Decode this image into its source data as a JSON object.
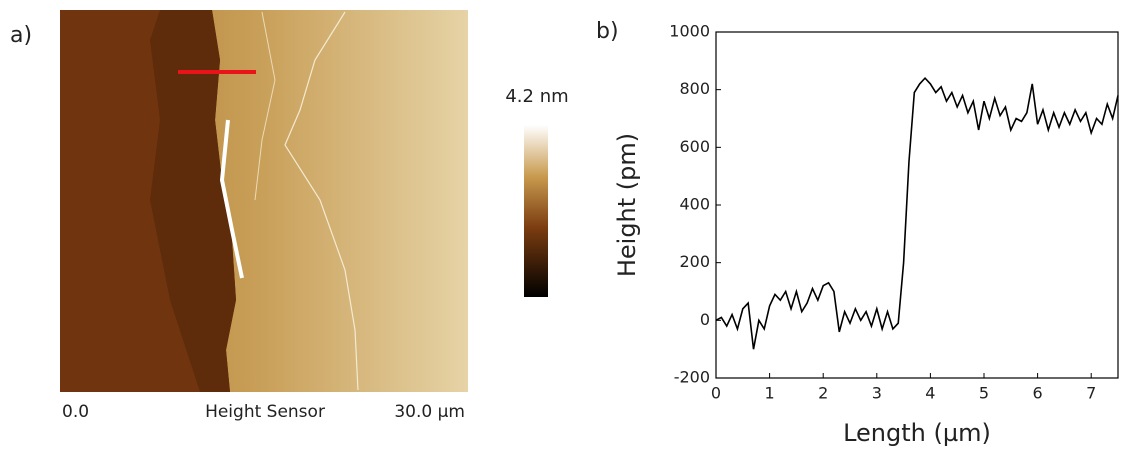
{
  "image_panel": {
    "label": "a)",
    "scale_max": "4.2 nm",
    "x_start": "0.0",
    "caption": "Height Sensor",
    "x_end": "30.0 µm"
  },
  "chart_data": {
    "type": "line",
    "label": "b)",
    "x_label": "Length (µm)",
    "y_label": "Height (pm)",
    "x": [
      0,
      0.1,
      0.2,
      0.3,
      0.4,
      0.5,
      0.6,
      0.7,
      0.8,
      0.9,
      1.0,
      1.1,
      1.2,
      1.3,
      1.4,
      1.5,
      1.6,
      1.7,
      1.8,
      1.9,
      2.0,
      2.1,
      2.2,
      2.3,
      2.4,
      2.5,
      2.6,
      2.7,
      2.8,
      2.9,
      3.0,
      3.1,
      3.2,
      3.3,
      3.4,
      3.5,
      3.6,
      3.7,
      3.8,
      3.9,
      4.0,
      4.1,
      4.2,
      4.3,
      4.4,
      4.5,
      4.6,
      4.7,
      4.8,
      4.9,
      5.0,
      5.1,
      5.2,
      5.3,
      5.4,
      5.5,
      5.6,
      5.7,
      5.8,
      5.9,
      6.0,
      6.1,
      6.2,
      6.3,
      6.4,
      6.5,
      6.6,
      6.7,
      6.8,
      6.9,
      7.0,
      7.1,
      7.2,
      7.3,
      7.4,
      7.5
    ],
    "values": [
      0,
      10,
      -20,
      20,
      -30,
      40,
      60,
      -100,
      0,
      -30,
      50,
      90,
      70,
      100,
      40,
      100,
      30,
      60,
      110,
      70,
      120,
      130,
      100,
      -40,
      30,
      -10,
      40,
      0,
      30,
      -20,
      40,
      -30,
      30,
      -30,
      -10,
      200,
      550,
      790,
      820,
      840,
      820,
      790,
      810,
      760,
      790,
      740,
      780,
      720,
      760,
      660,
      760,
      700,
      770,
      710,
      740,
      660,
      700,
      690,
      720,
      820,
      680,
      730,
      660,
      720,
      670,
      720,
      680,
      730,
      690,
      720,
      650,
      700,
      680,
      750,
      700,
      780
    ],
    "color": "#000000",
    "xlim": [
      0,
      7.5
    ],
    "xticks": [
      0,
      1,
      2,
      3,
      4,
      5,
      6,
      7
    ],
    "ylim": [
      -200,
      1000
    ],
    "yticks": [
      -200,
      0,
      200,
      400,
      600,
      800,
      1000
    ]
  }
}
